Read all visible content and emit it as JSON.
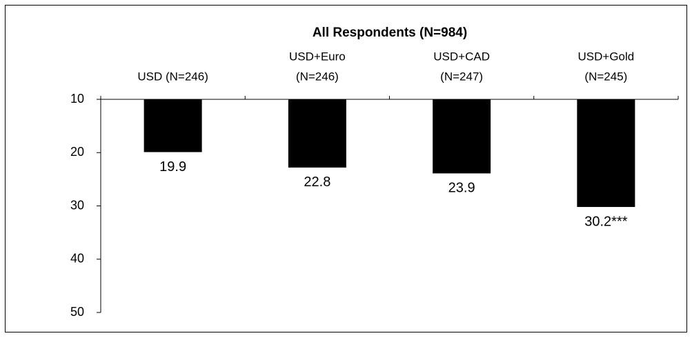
{
  "chart_data": {
    "type": "bar",
    "title": "All Respondents (N=984)",
    "categories": [
      [
        "USD (N=246)"
      ],
      [
        "USD+Euro",
        "(N=246)"
      ],
      [
        "USD+CAD",
        "(N=247)"
      ],
      [
        "USD+Gold",
        "(N=245)"
      ]
    ],
    "values": [
      19.9,
      22.8,
      23.9,
      30.2
    ],
    "value_labels": [
      "19.9",
      "22.8",
      "23.9",
      "30.2***"
    ],
    "color": "#000000",
    "ylim": [
      10,
      50
    ],
    "yticks": [
      10,
      20,
      30,
      40,
      50
    ],
    "y_inverted": true,
    "grid": false
  }
}
